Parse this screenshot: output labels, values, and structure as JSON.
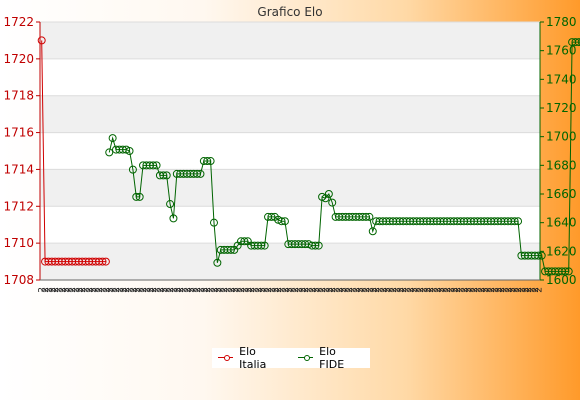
{
  "chart_data": {
    "type": "line",
    "title": "Grafico Elo",
    "y_left": {
      "label": "",
      "ylim": [
        1708,
        1722
      ],
      "ticks": [
        1708,
        1710,
        1712,
        1714,
        1716,
        1718,
        1720,
        1722
      ]
    },
    "y_right": {
      "label": "",
      "ylim": [
        1600,
        1780
      ],
      "ticks": [
        1600,
        1620,
        1640,
        1660,
        1680,
        1700,
        1720,
        1740,
        1760,
        1780
      ]
    },
    "x_count": 148,
    "x_tick_labels": [
      "2",
      "2",
      "2",
      "2",
      "2",
      "2",
      "2",
      "2",
      "2",
      "2",
      "2",
      "2",
      "2",
      "2",
      "2",
      "2",
      "2",
      "2",
      "2",
      "2",
      "2",
      "2",
      "2",
      "2",
      "2",
      "2",
      "2",
      "2",
      "2",
      "2",
      "2",
      "2",
      "2",
      "2",
      "2",
      "2",
      "2",
      "2",
      "2",
      "2",
      "2",
      "2",
      "2",
      "2",
      "2",
      "2",
      "2",
      "2",
      "2",
      "2",
      "2",
      "2",
      "2",
      "2",
      "2",
      "2",
      "2",
      "2",
      "2",
      "2",
      "2",
      "2",
      "2",
      "2",
      "2",
      "2",
      "2",
      "2",
      "2",
      "2",
      "2",
      "2",
      "2",
      "2",
      "2",
      "2",
      "2",
      "2",
      "2",
      "2",
      "2",
      "2",
      "2",
      "2",
      "2",
      "2",
      "2",
      "2",
      "2",
      "2",
      "2",
      "2",
      "2",
      "2",
      "2",
      "2",
      "2",
      "2",
      "2",
      "2",
      "2",
      "2",
      "2",
      "2",
      "2",
      "2",
      "2",
      "2",
      "2",
      "2",
      "2",
      "2",
      "2",
      "2",
      "2",
      "2",
      "2",
      "2",
      "2",
      "2",
      "2",
      "2",
      "2",
      "2",
      "2",
      "2",
      "2",
      "2",
      "2",
      "2",
      "2",
      "2",
      "2",
      "2",
      "2",
      "2",
      "2",
      "2",
      "2",
      "2",
      "2",
      "2",
      "2",
      "2",
      "2",
      "2",
      "2",
      "2"
    ],
    "legend_position": "bottom-center",
    "grid": true,
    "colors": {
      "italia": "#d00000",
      "fide": "#006400",
      "band": "#f0f0f0"
    },
    "series": [
      {
        "name": "Elo Italia",
        "axis": "left",
        "values": [
          1721,
          1709,
          1709,
          1709,
          1709,
          1709,
          1709,
          1709,
          1709,
          1709,
          1709,
          1709,
          1709,
          1709,
          1709,
          1709,
          1709,
          1709,
          1709,
          1709
        ]
      },
      {
        "name": "Elo FIDE",
        "axis": "right",
        "values": [
          null,
          null,
          null,
          null,
          null,
          null,
          null,
          null,
          null,
          null,
          null,
          null,
          null,
          null,
          null,
          null,
          null,
          null,
          null,
          null,
          1689,
          1699,
          1691,
          1691,
          1691,
          1691,
          1690,
          1677,
          1658,
          1658,
          1680,
          1680,
          1680,
          1680,
          1680,
          1673,
          1673,
          1673,
          1653,
          1643,
          1674,
          1674,
          1674,
          1674,
          1674,
          1674,
          1674,
          1674,
          1683,
          1683,
          1683,
          1640,
          1612,
          1621,
          1621,
          1621,
          1621,
          1621,
          1624,
          1627,
          1627,
          1627,
          1624,
          1624,
          1624,
          1624,
          1624,
          1644,
          1644,
          1644,
          1642,
          1641,
          1641,
          1625,
          1625,
          1625,
          1625,
          1625,
          1625,
          1625,
          1624,
          1624,
          1624,
          1658,
          1657,
          1660,
          1654,
          1644,
          1644,
          1644,
          1644,
          1644,
          1644,
          1644,
          1644,
          1644,
          1644,
          1644,
          1634,
          1641,
          1641,
          1641,
          1641,
          1641,
          1641,
          1641,
          1641,
          1641,
          1641,
          1641,
          1641,
          1641,
          1641,
          1641,
          1641,
          1641,
          1641,
          1641,
          1641,
          1641,
          1641,
          1641,
          1641,
          1641,
          1641,
          1641,
          1641,
          1641,
          1641,
          1641,
          1641,
          1641,
          1641,
          1641,
          1641,
          1641,
          1641,
          1641,
          1641,
          1641,
          1641,
          1641,
          1617,
          1617,
          1617,
          1617,
          1617,
          1617,
          1617,
          1606,
          1606,
          1606,
          1606,
          1606,
          1606,
          1606,
          1606,
          1766,
          1766,
          1766,
          1766,
          1766,
          1766,
          1766,
          1766,
          1766,
          1766,
          1766,
          1766,
          1766,
          1766,
          1766,
          1766,
          1766,
          1766,
          1766,
          1766,
          1766,
          1766,
          1766,
          1766,
          1766,
          1766
        ]
      }
    ]
  }
}
